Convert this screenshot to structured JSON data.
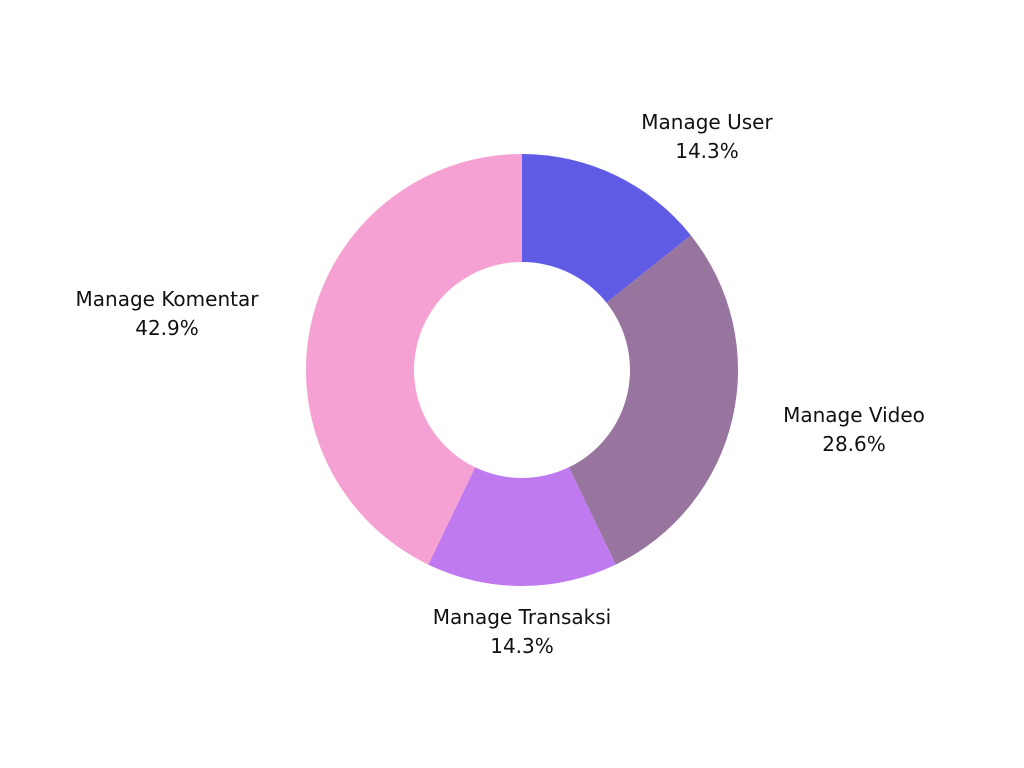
{
  "chart_data": {
    "type": "pie",
    "variant": "donut",
    "categories": [
      "Manage User",
      "Manage Video",
      "Manage Transaksi",
      "Manage Komentar"
    ],
    "values": [
      14.3,
      28.6,
      14.3,
      42.9
    ],
    "value_labels": [
      "14.3%",
      "28.6%",
      "14.3%",
      "42.9%"
    ],
    "colors": [
      "#605BE5",
      "#97759F",
      "#BE7AEE",
      "#F6A1D3"
    ],
    "start_angle": "12 o'clock",
    "direction": "clockwise",
    "legend": "none",
    "title": ""
  }
}
